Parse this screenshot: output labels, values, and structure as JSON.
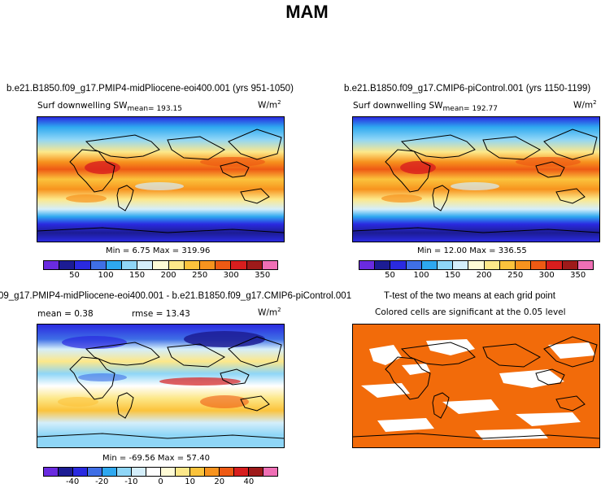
{
  "figure": {
    "title": "MAM"
  },
  "colors": {
    "abs_palette": [
      "#6a2be0",
      "#1c1c94",
      "#2a2ae0",
      "#3f6fe6",
      "#2ea8f0",
      "#8fd6f7",
      "#d4eefb",
      "#fffbd6",
      "#fde88a",
      "#fbc33c",
      "#f7931e",
      "#ee5a14",
      "#d81e1e",
      "#9e1a1a",
      "#ef6fb5"
    ],
    "diff_palette": [
      "#6a2be0",
      "#1c1c94",
      "#2a2ae0",
      "#3f6fe6",
      "#2ea8f0",
      "#8fd6f7",
      "#d4eefb",
      "#ffffff",
      "#fffbd6",
      "#fde88a",
      "#fbc33c",
      "#f7931e",
      "#ee5a14",
      "#d81e1e",
      "#9e1a1a",
      "#ef6fb5"
    ],
    "significant": "#f26b0a"
  },
  "panels": {
    "p1": {
      "title": "b.e21.B1850.f09_g17.PMIP4-midPliocene-eoi400.001 (yrs 951-1050)",
      "variable": "Surf downwelling SW",
      "mean_label": "mean= 193.15",
      "units": "W/m",
      "units_exp": "2",
      "minmax": "Min =    6.75 Max = 319.96"
    },
    "p2": {
      "title": "b.e21.B1850.f09_g17.CMIP6-piControl.001 (yrs 1150-1199)",
      "variable": "Surf downwelling SW",
      "mean_label": "mean= 192.77",
      "units": "W/m",
      "units_exp": "2",
      "minmax": "Min =   12.00 Max = 336.55"
    },
    "p3": {
      "title": "09_g17.PMIP4-midPliocene-eoi400.001 - b.e21.B1850.f09_g17.CMIP6-piControl.001",
      "mean_label": "mean =    0.38",
      "rmse_label": "rmse =   13.43",
      "units": "W/m",
      "units_exp": "2",
      "minmax": "Min = -69.56 Max =  57.40"
    },
    "p4": {
      "title": "T-test of the two means at each grid point",
      "subtitle": "Colored cells are significant at the 0.05 level"
    }
  },
  "chart_data": [
    {
      "type": "heatmap",
      "title": "b.e21.B1850.f09_g17.PMIP4-midPliocene-eoi400.001 (yrs 951-1050)",
      "variable": "Surf downwelling SW",
      "units": "W/m2",
      "mean": 193.15,
      "min": 6.75,
      "max": 319.96,
      "colorbar_ticks": [
        "50",
        "100",
        "150",
        "200",
        "250",
        "300",
        "350"
      ]
    },
    {
      "type": "heatmap",
      "title": "b.e21.B1850.f09_g17.CMIP6-piControl.001 (yrs 1150-1199)",
      "variable": "Surf downwelling SW",
      "units": "W/m2",
      "mean": 192.77,
      "min": 12.0,
      "max": 336.55,
      "colorbar_ticks": [
        "50",
        "100",
        "150",
        "200",
        "250",
        "300",
        "350"
      ]
    },
    {
      "type": "heatmap",
      "title": "09_g17.PMIP4-midPliocene-eoi400.001 - b.e21.B1850.f09_g17.CMIP6-piControl.001",
      "units": "W/m2",
      "mean": 0.38,
      "rmse": 13.43,
      "min": -69.56,
      "max": 57.4,
      "colorbar_ticks": [
        "-40",
        "-20",
        "-10",
        "0",
        "10",
        "20",
        "40"
      ]
    },
    {
      "type": "heatmap",
      "title": "T-test of the two means at each grid point",
      "note": "Colored cells are significant at the 0.05 level"
    }
  ]
}
